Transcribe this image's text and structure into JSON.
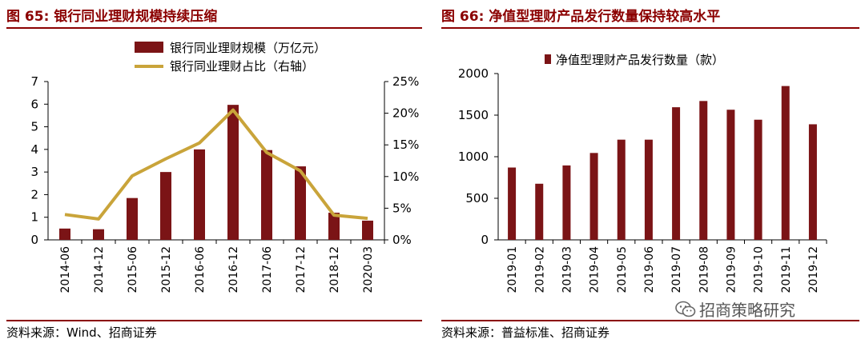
{
  "left_panel": {
    "title": "图 65:  银行同业理财规模持续压缩",
    "source": "资料来源：Wind、招商证券"
  },
  "right_panel": {
    "title": "图 66:  净值型理财产品发行数量保持较高水平",
    "source": "资料来源：普益标准、招商证券"
  },
  "watermark": {
    "text": "招商策略研究",
    "icon": "wechat-icon"
  },
  "colors": {
    "title": "#8b0000",
    "bar": "#7b1416",
    "line": "#c9a43a"
  },
  "chart_data": [
    {
      "type": "bar",
      "id": "left",
      "categories": [
        "2014-06",
        "2014-12",
        "2015-06",
        "2015-12",
        "2016-06",
        "2016-12",
        "2017-06",
        "2017-12",
        "2018-12",
        "2020-03"
      ],
      "series": [
        {
          "name": "银行同业理财规模（万亿元）",
          "type": "bar",
          "axis": "left",
          "values": [
            0.5,
            0.47,
            1.85,
            3.0,
            4.0,
            5.97,
            3.97,
            3.25,
            1.2,
            0.85
          ]
        },
        {
          "name": "银行同业理财占比（右轴）",
          "type": "line",
          "axis": "right",
          "values": [
            4.0,
            3.3,
            10.1,
            12.8,
            15.3,
            20.5,
            13.8,
            10.9,
            3.9,
            3.4
          ]
        }
      ],
      "ylim": [
        0,
        7
      ],
      "yticks": [
        "0",
        "1",
        "2",
        "3",
        "4",
        "5",
        "6",
        "7"
      ],
      "y2lim": [
        0,
        25
      ],
      "y2ticks": [
        "0%",
        "5%",
        "10%",
        "15%",
        "20%",
        "25%"
      ],
      "legend": "top-center"
    },
    {
      "type": "bar",
      "id": "right",
      "categories": [
        "2019-01",
        "2019-02",
        "2019-03",
        "2019-04",
        "2019-05",
        "2019-06",
        "2019-07",
        "2019-08",
        "2019-09",
        "2019-10",
        "2019-11",
        "2019-12"
      ],
      "series": [
        {
          "name": "净值型理财产品发行数量（款）",
          "values": [
            870,
            675,
            895,
            1045,
            1205,
            1205,
            1595,
            1670,
            1565,
            1445,
            1850,
            1390
          ]
        }
      ],
      "ylim": [
        0,
        2000
      ],
      "yticks": [
        "0",
        "500",
        "1000",
        "1500",
        "2000"
      ],
      "legend": "top-center"
    }
  ]
}
